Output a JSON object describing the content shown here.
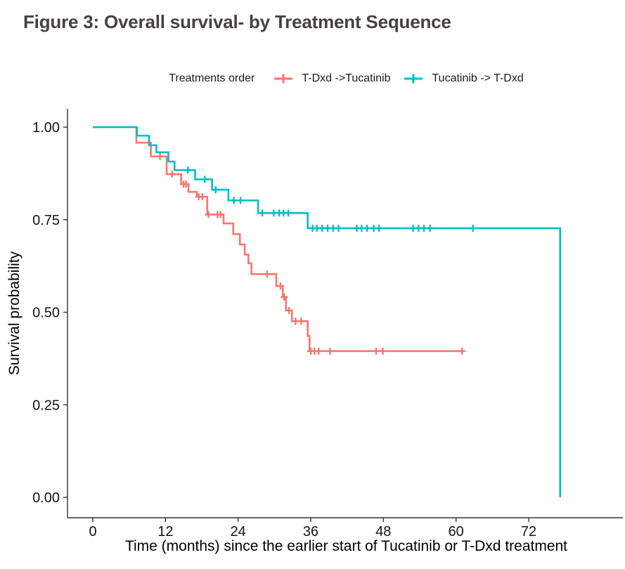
{
  "figure": {
    "title": "Figure 3: Overall survival- by Treatment Sequence"
  },
  "legend": {
    "title": "Treatments order",
    "items": [
      {
        "label": "T-Dxd ->Tucatinib",
        "color": "#F8766D"
      },
      {
        "label": "Tucatinib -> T-Dxd",
        "color": "#00BFC4"
      }
    ]
  },
  "chart_data": {
    "type": "line",
    "variant": "kaplan-meier-step",
    "title": "",
    "xlabel": "Time (months) since the earlier start of Tucatinib or T-Dxd treatment",
    "ylabel": "Survival probability",
    "xlim": [
      -4,
      84
    ],
    "ylim": [
      -0.05,
      1.05
    ],
    "x_ticks": [
      0,
      12,
      24,
      36,
      48,
      60,
      72
    ],
    "y_ticks": [
      {
        "label": "1.00",
        "value": 1.0
      },
      {
        "label": "0.75",
        "value": 0.75
      },
      {
        "label": "0.50",
        "value": 0.5
      },
      {
        "label": "0.25",
        "value": 0.25
      },
      {
        "label": "0.00",
        "value": 0.0
      }
    ],
    "grid": false,
    "legend_position": "top",
    "series": [
      {
        "id": "tdxd-tucatinib",
        "name": "T-Dxd ->Tucatinib",
        "color": "#F8766D",
        "steps": [
          [
            0,
            1.0
          ],
          [
            7.2,
            0.958
          ],
          [
            9.6,
            0.921
          ],
          [
            12.2,
            0.873
          ],
          [
            14.6,
            0.846
          ],
          [
            15.8,
            0.825
          ],
          [
            17.2,
            0.812
          ],
          [
            18.9,
            0.764
          ],
          [
            21.6,
            0.74
          ],
          [
            23.2,
            0.711
          ],
          [
            24.3,
            0.683
          ],
          [
            25.1,
            0.656
          ],
          [
            25.7,
            0.632
          ],
          [
            26.2,
            0.603
          ],
          [
            30.3,
            0.571
          ],
          [
            31.4,
            0.541
          ],
          [
            31.9,
            0.505
          ],
          [
            32.9,
            0.476
          ],
          [
            35.5,
            0.436
          ],
          [
            35.8,
            0.395
          ]
        ],
        "end_time": 61.2,
        "censor_times": [
          11.1,
          13.1,
          15.0,
          15.4,
          17.5,
          18.1,
          19.1,
          20.6,
          21.1,
          28.8,
          31.0,
          31.6,
          32.4,
          33.5,
          34.4,
          36.0,
          36.6,
          37.3,
          39.2,
          46.8,
          47.9,
          61.0
        ]
      },
      {
        "id": "tucatinib-tdxd",
        "name": "Tucatinib -> T-Dxd",
        "color": "#00BFC4",
        "steps": [
          [
            0,
            1.0
          ],
          [
            7.3,
            0.977
          ],
          [
            9.3,
            0.951
          ],
          [
            10.5,
            0.932
          ],
          [
            12.5,
            0.907
          ],
          [
            13.5,
            0.884
          ],
          [
            16.9,
            0.859
          ],
          [
            19.7,
            0.831
          ],
          [
            22.4,
            0.802
          ],
          [
            27.3,
            0.768
          ],
          [
            35.5,
            0.727
          ],
          [
            77.2,
            0.0
          ]
        ],
        "end_time": 77.2,
        "censor_times": [
          15.7,
          18.5,
          20.3,
          23.3,
          24.4,
          28.0,
          29.9,
          30.8,
          31.5,
          32.3,
          36.3,
          37.0,
          37.9,
          38.8,
          39.7,
          40.6,
          43.6,
          44.4,
          45.3,
          46.4,
          47.3,
          52.9,
          53.8,
          54.7,
          55.7,
          62.8
        ]
      }
    ]
  }
}
